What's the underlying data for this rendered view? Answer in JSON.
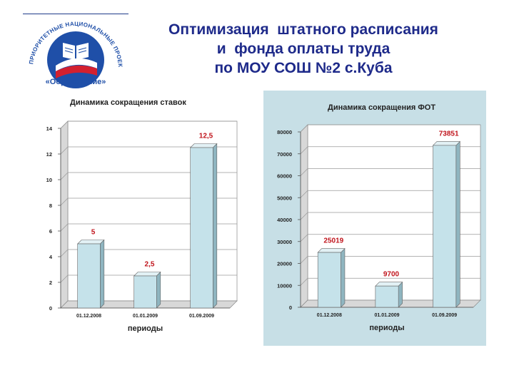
{
  "title_lines": [
    "Оптимизация  штатного расписания",
    "и  фонда оплаты труда",
    "по МОУ СОШ №2 с.Куба"
  ],
  "logo": {
    "arc_text": "ПРИОРИТЕТНЫЕ НАЦИОНАЛЬНЫЕ ПРОЕКТЫ",
    "caption": "«Образование»",
    "colors": {
      "blue": "#1f4fa8",
      "red": "#d3202f",
      "white": "#ffffff"
    }
  },
  "colors": {
    "bar": "#c5e2ea",
    "bar_side": "#8fb5c0",
    "label": "#c0141c",
    "title": "#1e2a8a",
    "panel": "#c7dfe6"
  },
  "chart_data": [
    {
      "type": "bar",
      "title": "Динамика сокращения  ставок",
      "categories": [
        "01.12.2008",
        "01.01.2009",
        "01.09.2009"
      ],
      "values": [
        5,
        2.5,
        12.5
      ],
      "data_labels": [
        "5",
        "2,5",
        "12,5"
      ],
      "xlabel": "периоды",
      "ylabel": "",
      "ylim": [
        0,
        14
      ],
      "yticks": [
        0,
        2,
        4,
        6,
        8,
        10,
        12,
        14
      ],
      "grid": true,
      "background": "white"
    },
    {
      "type": "bar",
      "title": "Динамика сокращения  ФОТ",
      "categories": [
        "01.12.2008",
        "01.01.2009",
        "01.09.2009"
      ],
      "values": [
        25019,
        9700,
        73851
      ],
      "data_labels": [
        "25019",
        "9700",
        "73851"
      ],
      "xlabel": "периоды",
      "ylabel": "",
      "ylim": [
        0,
        80000
      ],
      "yticks": [
        0,
        10000,
        20000,
        30000,
        40000,
        50000,
        60000,
        70000,
        80000
      ],
      "grid": true,
      "background": "light-blue"
    }
  ]
}
